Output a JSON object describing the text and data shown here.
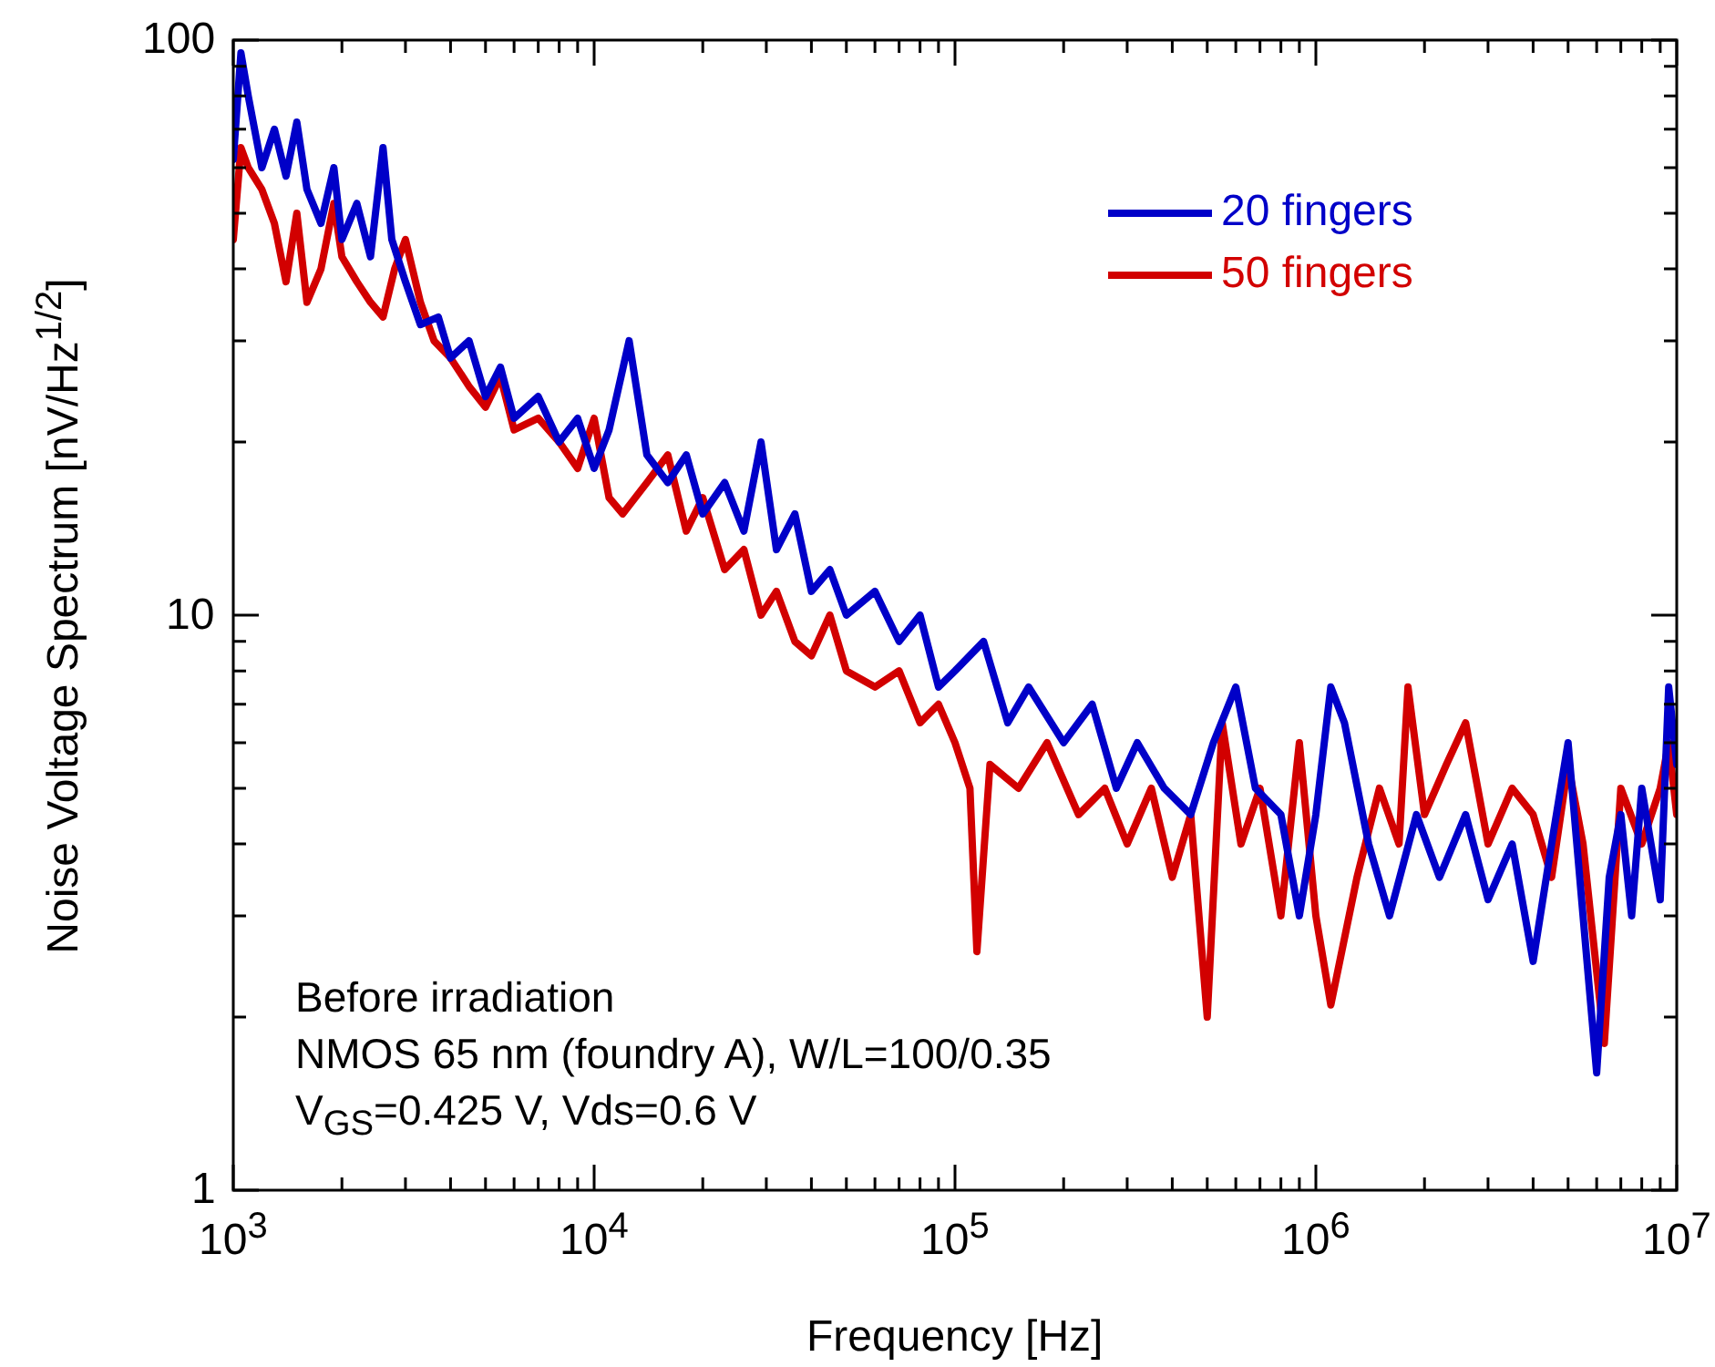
{
  "chart_data": {
    "type": "line",
    "xlabel": "Frequency [Hz]",
    "ylabel": "Noise Voltage Spectrum [nV/Hz$^{1/2}$]",
    "log": "xy",
    "grid": false,
    "legend": "top right",
    "marker": "none",
    "line_style": "solid",
    "xlim": [
      1000,
      10000000
    ],
    "ylim": [
      1,
      100
    ],
    "xticks": [
      {
        "value": 1000,
        "label": "10$^{3}$"
      },
      {
        "value": 2000,
        "label": null
      },
      {
        "value": 3000,
        "label": null
      },
      {
        "value": 4000,
        "label": null
      },
      {
        "value": 5000,
        "label": null
      },
      {
        "value": 6000,
        "label": null
      },
      {
        "value": 7000,
        "label": null
      },
      {
        "value": 8000,
        "label": null
      },
      {
        "value": 9000,
        "label": null
      },
      {
        "value": 10000,
        "label": "10$^{4}$"
      },
      {
        "value": 20000,
        "label": null
      },
      {
        "value": 30000,
        "label": null
      },
      {
        "value": 40000,
        "label": null
      },
      {
        "value": 50000,
        "label": null
      },
      {
        "value": 60000,
        "label": null
      },
      {
        "value": 70000,
        "label": null
      },
      {
        "value": 80000,
        "label": null
      },
      {
        "value": 90000,
        "label": null
      },
      {
        "value": 100000,
        "label": "10$^{5}$"
      },
      {
        "value": 200000,
        "label": null
      },
      {
        "value": 300000,
        "label": null
      },
      {
        "value": 400000,
        "label": null
      },
      {
        "value": 500000,
        "label": null
      },
      {
        "value": 600000,
        "label": null
      },
      {
        "value": 700000,
        "label": null
      },
      {
        "value": 800000,
        "label": null
      },
      {
        "value": 900000,
        "label": null
      },
      {
        "value": 1000000,
        "label": "10$^{6}$"
      },
      {
        "value": 2000000,
        "label": null
      },
      {
        "value": 3000000,
        "label": null
      },
      {
        "value": 4000000,
        "label": null
      },
      {
        "value": 5000000,
        "label": null
      },
      {
        "value": 6000000,
        "label": null
      },
      {
        "value": 7000000,
        "label": null
      },
      {
        "value": 8000000,
        "label": null
      },
      {
        "value": 9000000,
        "label": null
      },
      {
        "value": 10000000,
        "label": "10$^{7}$"
      }
    ],
    "yticks": [
      1,
      {
        "value": 2,
        "label": null
      },
      {
        "value": 3,
        "label": null
      },
      {
        "value": 4,
        "label": null
      },
      {
        "value": 5,
        "label": null
      },
      {
        "value": 6,
        "label": null
      },
      {
        "value": 7,
        "label": null
      },
      {
        "value": 8,
        "label": null
      },
      {
        "value": 9,
        "label": null
      },
      10,
      {
        "value": 20,
        "label": null
      },
      {
        "value": 30,
        "label": null
      },
      {
        "value": 40,
        "label": null
      },
      {
        "value": 50,
        "label": null
      },
      {
        "value": 60,
        "label": null
      },
      {
        "value": 70,
        "label": null
      },
      {
        "value": 80,
        "label": null
      },
      {
        "value": 90,
        "label": null
      },
      100
    ],
    "annotations": [
      "Before irradiation",
      "NMOS 65 nm (foundry A), W/L=100/0.35",
      "V$_{GS}$=0.425 V, Vds=0.6 V"
    ],
    "series": [
      {
        "name": "20 fingers",
        "color": "#0000c8",
        "x": [
          1000,
          1050,
          1100,
          1200,
          1300,
          1400,
          1500,
          1600,
          1750,
          1900,
          2000,
          2200,
          2400,
          2600,
          2750,
          3000,
          3300,
          3700,
          4000,
          4500,
          5000,
          5500,
          6000,
          7000,
          8000,
          9000,
          10000,
          11000,
          12500,
          14000,
          16000,
          18000,
          20000,
          23000,
          26000,
          29000,
          32000,
          36000,
          40000,
          45000,
          50000,
          60000,
          70000,
          80000,
          90000,
          100000,
          120000,
          140000,
          160000,
          200000,
          240000,
          280000,
          320000,
          380000,
          450000,
          520000,
          600000,
          680000,
          800000,
          900000,
          1000000,
          1100000,
          1200000,
          1400000,
          1600000,
          1900000,
          2200000,
          2600000,
          3000000,
          3500000,
          4000000,
          4500000,
          5000000,
          5500000,
          6000000,
          6500000,
          7000000,
          7500000,
          8000000,
          9000000,
          9500000,
          10000000
        ],
        "values": [
          62,
          95,
          80,
          60,
          70,
          58,
          72,
          55,
          48,
          60,
          45,
          52,
          42,
          65,
          45,
          38,
          32,
          33,
          28,
          30,
          24,
          27,
          22,
          24,
          20,
          22,
          18,
          21,
          30,
          19,
          17,
          19,
          15,
          17,
          14,
          20,
          13,
          15,
          11,
          12,
          10,
          11,
          9,
          10,
          7.5,
          8,
          9,
          6.5,
          7.5,
          6,
          7,
          5,
          6,
          5,
          4.5,
          6,
          7.5,
          5,
          4.5,
          3,
          4.5,
          7.5,
          6.5,
          4,
          3,
          4.5,
          3.5,
          4.5,
          3.2,
          4,
          2.5,
          4,
          6,
          3,
          1.6,
          3.5,
          4.5,
          3,
          5,
          3.2,
          7.5,
          5.5
        ]
      },
      {
        "name": "50 fingers",
        "color": "#d20000",
        "x": [
          1000,
          1050,
          1100,
          1200,
          1300,
          1400,
          1500,
          1600,
          1750,
          1900,
          2000,
          2200,
          2400,
          2600,
          2800,
          3000,
          3300,
          3600,
          4000,
          4500,
          5000,
          5500,
          6000,
          7000,
          8000,
          9000,
          10000,
          11000,
          12000,
          14000,
          16000,
          18000,
          20000,
          23000,
          26000,
          29000,
          32000,
          36000,
          40000,
          45000,
          50000,
          60000,
          70000,
          80000,
          90000,
          100000,
          110000,
          115000,
          125000,
          150000,
          180000,
          220000,
          260000,
          300000,
          350000,
          400000,
          450000,
          500000,
          550000,
          620000,
          700000,
          800000,
          900000,
          1000000,
          1100000,
          1300000,
          1500000,
          1700000,
          1800000,
          2000000,
          2300000,
          2600000,
          3000000,
          3500000,
          4000000,
          4500000,
          5000000,
          5500000,
          6300000,
          7000000,
          8000000,
          9000000,
          9500000,
          10000000
        ],
        "values": [
          45,
          65,
          60,
          55,
          48,
          38,
          50,
          35,
          40,
          52,
          42,
          38,
          35,
          33,
          40,
          45,
          35,
          30,
          28,
          25,
          23,
          26,
          21,
          22,
          20,
          18,
          22,
          16,
          15,
          17,
          19,
          14,
          16,
          12,
          13,
          10,
          11,
          9,
          8.5,
          10,
          8,
          7.5,
          8,
          6.5,
          7,
          6,
          5,
          2.6,
          5.5,
          5,
          6,
          4.5,
          5,
          4,
          5,
          3.5,
          4.5,
          2,
          6.5,
          4,
          5,
          3,
          6,
          3,
          2.1,
          3.5,
          5,
          4,
          7.5,
          4.5,
          5.5,
          6.5,
          4,
          5,
          4.5,
          3.5,
          5.5,
          4,
          1.8,
          5,
          4,
          5,
          6,
          4.5
        ]
      }
    ]
  }
}
